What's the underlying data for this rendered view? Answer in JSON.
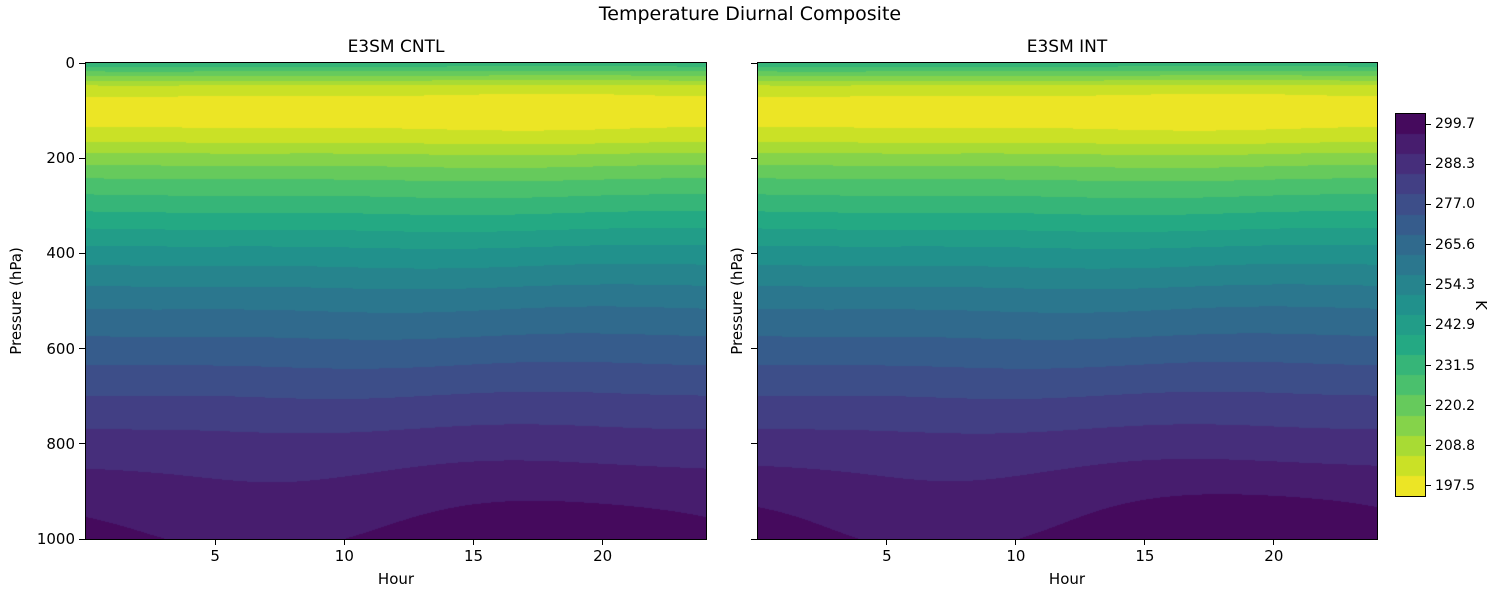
{
  "figure": {
    "title": "Temperature Diurnal Composite",
    "colorbar": {
      "label": "K",
      "tick_labels": [
        "299.7",
        "288.3",
        "277.0",
        "265.6",
        "254.3",
        "242.9",
        "231.5",
        "220.2",
        "208.8",
        "197.5"
      ],
      "vmin": 194.66,
      "vmax": 302.54,
      "n_bands": 19,
      "colormap": "viridis_r"
    }
  },
  "panels": [
    {
      "title": "E3SM CNTL",
      "xlabel": "Hour",
      "ylabel": "Pressure (hPa)"
    },
    {
      "title": "E3SM INT",
      "xlabel": "Hour",
      "ylabel": "Pressure (hPa)"
    }
  ],
  "chart_data": [
    {
      "type": "heatmap",
      "title": "E3SM CNTL",
      "xlabel": "Hour",
      "ylabel": "Pressure (hPa)",
      "units": "K",
      "colormap": "viridis_r",
      "x_range": [
        0,
        24
      ],
      "y_range": [
        0,
        1000
      ],
      "y_inverted": true,
      "x_ticks": [
        5,
        10,
        15,
        20
      ],
      "y_ticks": [
        0,
        200,
        400,
        600,
        800,
        1000
      ],
      "contour_interval_K": 5.68,
      "profile": {
        "pressure_hPa": [
          0,
          50,
          80,
          120,
          160,
          200,
          250,
          300,
          400,
          500,
          600,
          700,
          800,
          900,
          1000
        ],
        "temperature_K": [
          233,
          204,
          198,
          197.5,
          204,
          214,
          224,
          232,
          248,
          261,
          271,
          280,
          288,
          294,
          298.5
        ]
      },
      "diurnal": {
        "surface_amplitude_K": 2.5,
        "peak_hour": 19,
        "depth_hPa": 130,
        "upper_amplitude_K": 0.7
      }
    },
    {
      "type": "heatmap",
      "title": "E3SM INT",
      "xlabel": "Hour",
      "ylabel": "Pressure (hPa)",
      "units": "K",
      "colormap": "viridis_r",
      "x_range": [
        0,
        24
      ],
      "y_range": [
        0,
        1000
      ],
      "y_inverted": true,
      "x_ticks": [
        5,
        10,
        15,
        20
      ],
      "y_ticks": [
        0,
        200,
        400,
        600,
        800,
        1000
      ],
      "contour_interval_K": 5.68,
      "profile": {
        "pressure_hPa": [
          0,
          50,
          80,
          120,
          160,
          200,
          250,
          300,
          400,
          500,
          600,
          700,
          800,
          900,
          1000
        ],
        "temperature_K": [
          233,
          204,
          198,
          197.5,
          204,
          214,
          224,
          232,
          248,
          261,
          271,
          280,
          288,
          294.5,
          299.2
        ]
      },
      "diurnal": {
        "surface_amplitude_K": 3.2,
        "peak_hour": 19.5,
        "depth_hPa": 130,
        "upper_amplitude_K": 0.7
      }
    }
  ]
}
